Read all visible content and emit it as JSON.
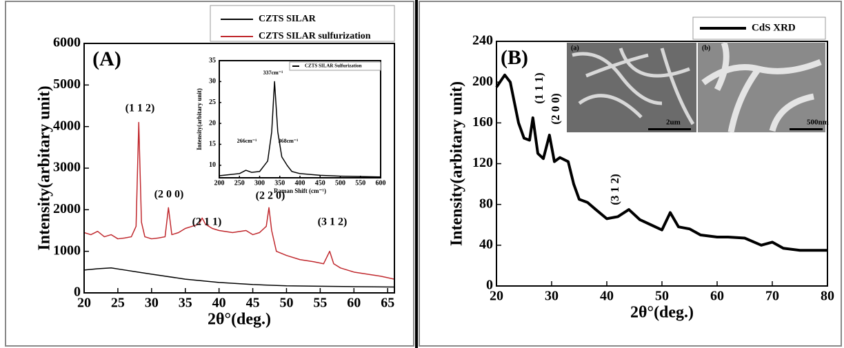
{
  "chart_data": [
    {
      "type": "line",
      "x_label": "2θ°(deg.)",
      "y_label": "Intensity(arbitary unit)",
      "xlim": [
        20,
        66
      ],
      "ylim": [
        0,
        6000
      ],
      "xticks": [
        20,
        25,
        30,
        35,
        40,
        45,
        50,
        55,
        60,
        65
      ],
      "yticks": [
        0,
        1000,
        2000,
        3000,
        4000,
        5000,
        6000
      ],
      "series": [
        {
          "name": "CZTS SILAR",
          "color": "#000000",
          "x": [
            20,
            22,
            24,
            26,
            28,
            30,
            35,
            40,
            45,
            50,
            55,
            60,
            66
          ],
          "values": [
            550,
            580,
            600,
            550,
            500,
            450,
            330,
            250,
            200,
            170,
            160,
            150,
            140
          ]
        },
        {
          "name": "CZTS SILAR sulfurization",
          "color": "#c0282d",
          "x": [
            20,
            21,
            22,
            23,
            24,
            25,
            26,
            27,
            27.7,
            28.1,
            28.5,
            29,
            30,
            31,
            32,
            32.5,
            33,
            34,
            35,
            36,
            37,
            37.5,
            38,
            39,
            40,
            42,
            44,
            45,
            46,
            47,
            47.4,
            47.8,
            48.5,
            50,
            52,
            54,
            55.5,
            56.4,
            57,
            58,
            60,
            62,
            64,
            66
          ],
          "values": [
            1450,
            1400,
            1480,
            1350,
            1400,
            1300,
            1320,
            1350,
            1600,
            4100,
            1700,
            1350,
            1300,
            1320,
            1350,
            2050,
            1400,
            1450,
            1550,
            1600,
            1650,
            1800,
            1650,
            1550,
            1500,
            1450,
            1500,
            1400,
            1450,
            1600,
            2050,
            1500,
            1000,
            900,
            800,
            750,
            700,
            1000,
            700,
            600,
            500,
            450,
            400,
            330
          ]
        }
      ],
      "annotations": [
        "(A)",
        "(1 1 2)",
        "(2 0 0)",
        "(2 1 1)",
        "(2 2 0)",
        "(3 1 2)"
      ]
    },
    {
      "type": "line",
      "x_label": "Raman Shift (cm⁻¹)",
      "y_label": "Intensity(arbitary unit)",
      "xlim": [
        200,
        600
      ],
      "ylim": [
        7,
        35
      ],
      "xticks": [
        200,
        250,
        300,
        350,
        400,
        450,
        500,
        550,
        600
      ],
      "yticks": [
        10,
        15,
        20,
        25,
        30,
        35
      ],
      "series": [
        {
          "name": "CZTS SILAR Sulfurization",
          "color": "#000000",
          "x": [
            200,
            250,
            266,
            280,
            300,
            320,
            330,
            337,
            345,
            355,
            368,
            380,
            400,
            450,
            500,
            550,
            600
          ],
          "values": [
            7.5,
            8,
            8.8,
            8.3,
            8.5,
            11,
            18,
            30,
            18,
            12,
            10,
            8.5,
            8,
            7.6,
            7.4,
            7.3,
            7.2
          ]
        }
      ],
      "annotations": [
        "266cm⁻¹",
        "337cm⁻¹",
        "368cm⁻¹"
      ]
    },
    {
      "type": "line",
      "x_label": "2θ°(deg.)",
      "y_label": "Intensity(arbitary unit)",
      "xlim": [
        20,
        80
      ],
      "ylim": [
        0,
        240
      ],
      "xticks": [
        20,
        30,
        40,
        50,
        60,
        70,
        80
      ],
      "yticks": [
        0,
        40,
        80,
        120,
        160,
        200,
        240
      ],
      "series": [
        {
          "name": "CdS XRD",
          "color": "#000000",
          "x": [
            20,
            21.5,
            22.5,
            24,
            25,
            26,
            26.6,
            27.5,
            28.5,
            29.6,
            30.5,
            31.5,
            33,
            34,
            35,
            36.5,
            38,
            40,
            42,
            44,
            46,
            48,
            50,
            51.5,
            53,
            55,
            57,
            60,
            62,
            65,
            68,
            70,
            72,
            75,
            78,
            80
          ],
          "values": [
            195,
            207,
            200,
            160,
            145,
            143,
            165,
            130,
            125,
            148,
            122,
            126,
            122,
            100,
            85,
            82,
            75,
            66,
            68,
            75,
            65,
            60,
            55,
            72,
            58,
            56,
            50,
            48,
            48,
            47,
            40,
            43,
            37,
            35,
            35,
            35
          ]
        }
      ],
      "annotations": [
        "(B)",
        "(1 1 1)",
        "(2 0 0)",
        "(3 1 2)"
      ],
      "inset_images": [
        {
          "label": "(a)",
          "scale": "2um"
        },
        {
          "label": "(b)",
          "scale": "500nm"
        }
      ]
    }
  ]
}
